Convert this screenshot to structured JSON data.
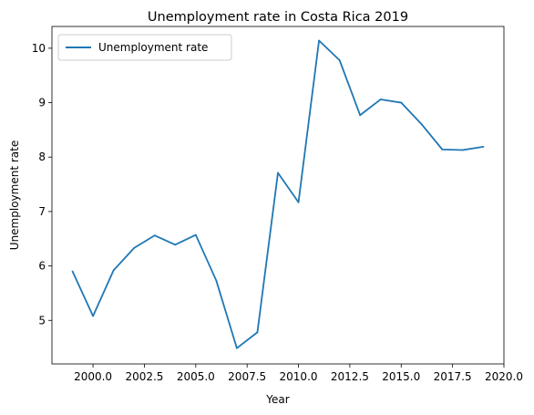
{
  "chart_data": {
    "type": "line",
    "title": "Unemployment rate in Costa Rica 2019",
    "xlabel": "Year",
    "ylabel": "Unemployment rate",
    "xlim": [
      1998.0,
      2020.0
    ],
    "ylim": [
      4.2,
      10.4
    ],
    "xticks": [
      2000.0,
      2002.5,
      2005.0,
      2007.5,
      2010.0,
      2012.5,
      2015.0,
      2017.5,
      2020.0
    ],
    "xtick_labels": [
      "2000.0",
      "2002.5",
      "2005.0",
      "2007.5",
      "2010.0",
      "2012.5",
      "2015.0",
      "2017.5",
      "2020.0"
    ],
    "yticks": [
      5,
      6,
      7,
      8,
      9,
      10
    ],
    "ytick_labels": [
      "5",
      "6",
      "7",
      "8",
      "9",
      "10"
    ],
    "grid": false,
    "legend_position": "top-left",
    "series": [
      {
        "name": "Unemployment rate",
        "color": "#1f77b4",
        "x": [
          1999,
          2000,
          2001,
          2002,
          2003,
          2004,
          2005,
          2006,
          2007,
          2008,
          2009,
          2010,
          2011,
          2012,
          2013,
          2014,
          2015,
          2016,
          2017,
          2018,
          2019
        ],
        "values": [
          5.9,
          5.08,
          5.92,
          6.33,
          6.56,
          6.39,
          6.57,
          5.73,
          4.49,
          4.78,
          7.71,
          7.17,
          10.14,
          9.78,
          8.77,
          9.06,
          9.0,
          8.6,
          8.14,
          8.13,
          8.19
        ]
      }
    ]
  }
}
